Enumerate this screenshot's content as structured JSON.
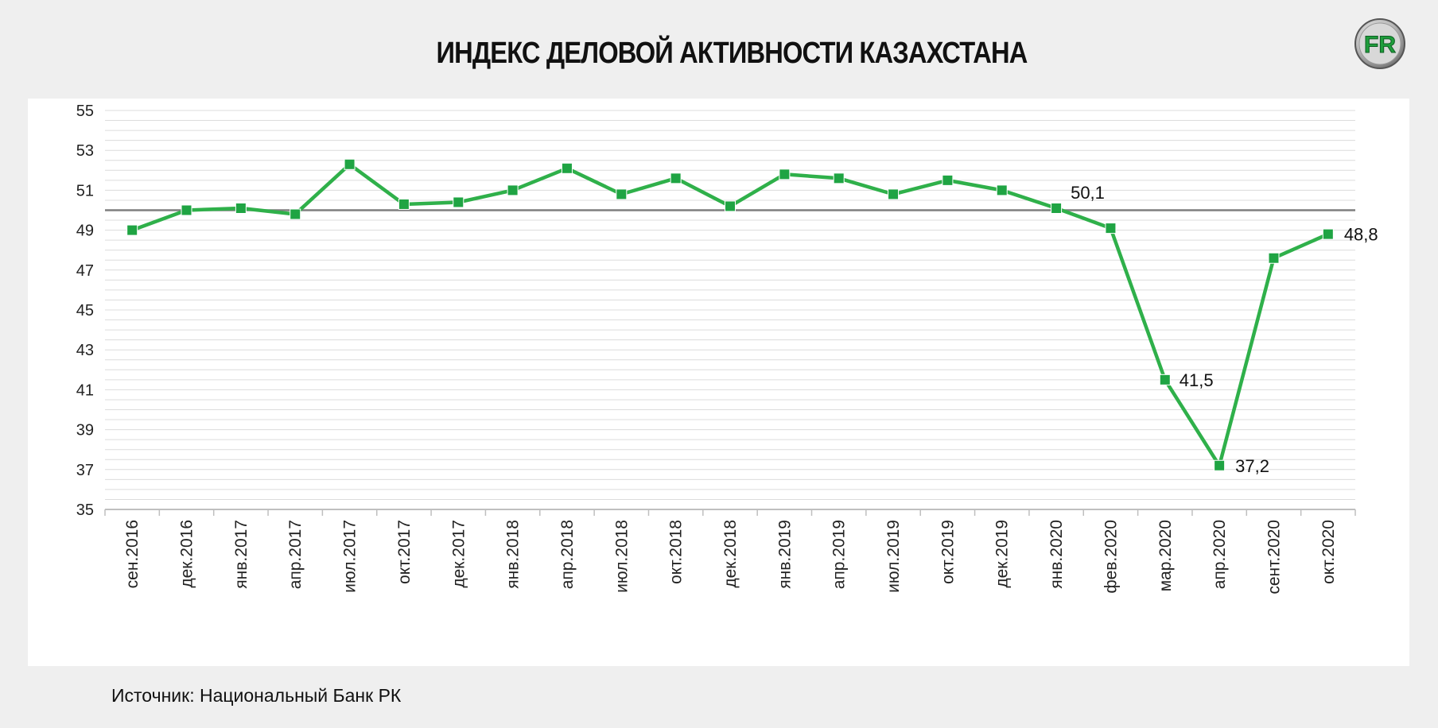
{
  "title": "ИНДЕКС ДЕЛОВОЙ АКТИВНОСТИ КАЗАХСТАНА",
  "logo": {
    "icon": "fr-logo-icon",
    "text": "FR"
  },
  "source": "Источник: Национальный Банк РК",
  "colors": {
    "line": "#2fb04a",
    "marker": "#1fa443",
    "reference": "#7f7f7f",
    "grid": "#dcdcdc"
  },
  "chart_data": {
    "type": "line",
    "title": "ИНДЕКС ДЕЛОВОЙ АКТИВНОСТИ КАЗАХСТАНА",
    "xlabel": "",
    "ylabel": "",
    "ylim": [
      35,
      55
    ],
    "yticks": [
      35,
      37,
      39,
      41,
      43,
      45,
      47,
      49,
      51,
      53,
      55
    ],
    "grid": true,
    "reference_line": 50,
    "categories": [
      "сен.2016",
      "дек.2016",
      "янв.2017",
      "апр.2017",
      "июл.2017",
      "окт.2017",
      "дек.2017",
      "янв.2018",
      "апр.2018",
      "июл.2018",
      "окт.2018",
      "дек.2018",
      "янв.2019",
      "апр.2019",
      "июл.2019",
      "окт.2019",
      "дек.2019",
      "янв.2020",
      "фев.2020",
      "мар.2020",
      "апр.2020",
      "сент.2020",
      "окт.2020"
    ],
    "series": [
      {
        "values": [
          49.0,
          50.0,
          50.1,
          49.8,
          52.3,
          50.3,
          50.4,
          51.0,
          52.1,
          50.8,
          51.6,
          50.2,
          51.8,
          51.6,
          50.8,
          51.5,
          51.0,
          50.1,
          49.1,
          41.5,
          37.2,
          47.6,
          48.8
        ]
      }
    ],
    "data_labels": [
      {
        "index": 17,
        "text": "50,1"
      },
      {
        "index": 19,
        "text": "41,5"
      },
      {
        "index": 20,
        "text": "37,2"
      },
      {
        "index": 22,
        "text": "48,8"
      }
    ]
  }
}
